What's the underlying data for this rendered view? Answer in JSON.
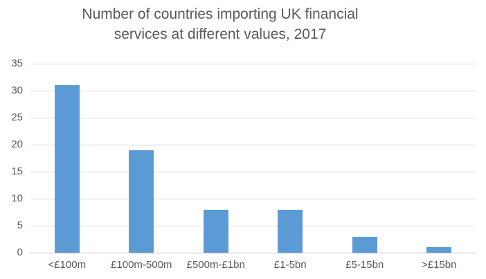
{
  "chart_data": {
    "type": "bar",
    "title": "Number of countries importing UK financial services at different values, 2017",
    "title_lines": [
      "Number of countries importing UK financial",
      "services at different values, 2017"
    ],
    "categories": [
      "<£100m",
      "£100m-500m",
      "£500m-£1bn",
      "£1-5bn",
      "£5-15bn",
      ">£15bn"
    ],
    "values": [
      31,
      19,
      8,
      8,
      3,
      1
    ],
    "xlabel": "",
    "ylabel": "",
    "ylim": [
      0,
      35
    ],
    "yticks": [
      0,
      5,
      10,
      15,
      20,
      25,
      30,
      35
    ],
    "grid": "horizontal",
    "legend": "none",
    "colors": {
      "bar": "#5B9BD5",
      "gridline": "#D9D9D9",
      "axis_line": "#BFBFBF",
      "text": "#595959"
    }
  }
}
